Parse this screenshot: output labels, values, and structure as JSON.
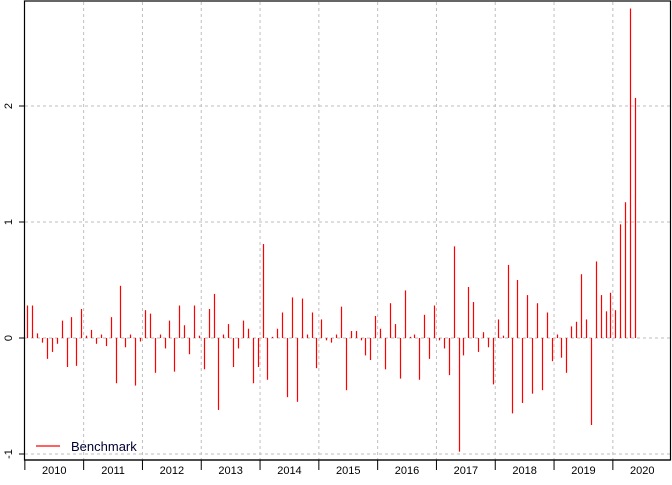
{
  "chart_data": {
    "type": "bar",
    "title": "",
    "xlabel": "",
    "ylabel": "",
    "x_start": "2010-01",
    "x_frequency": "monthly",
    "x_tick_labels": [
      "2010",
      "2011",
      "2012",
      "2013",
      "2014",
      "2015",
      "2016",
      "2017",
      "2018",
      "2019",
      "2020"
    ],
    "y_ticks": [
      -1,
      0,
      1,
      2
    ],
    "y_tick_labels": [
      "-1",
      "0",
      "1",
      "2"
    ],
    "ylim": [
      -1.07,
      2.9
    ],
    "grid": true,
    "legend_position": "bottom-left",
    "series": [
      {
        "name": "Benchmark",
        "color": "#ff0000",
        "values": [
          0.28,
          0.28,
          0.04,
          -0.04,
          -0.18,
          -0.12,
          -0.05,
          0.15,
          -0.25,
          0.18,
          -0.24,
          0.25,
          0.02,
          0.07,
          -0.05,
          0.03,
          -0.07,
          0.18,
          -0.39,
          0.45,
          -0.08,
          0.03,
          -0.41,
          -0.03,
          0.24,
          0.21,
          -0.3,
          0.03,
          -0.09,
          0.15,
          -0.29,
          0.28,
          0.11,
          -0.14,
          0.28,
          0.02,
          -0.27,
          0.25,
          0.38,
          -0.62,
          0.03,
          0.12,
          -0.25,
          -0.09,
          0.15,
          0.08,
          -0.39,
          -0.25,
          0.81,
          -0.36,
          0.01,
          0.08,
          0.22,
          -0.51,
          0.35,
          -0.55,
          0.34,
          0.03,
          0.22,
          -0.26,
          0.16,
          -0.02,
          -0.04,
          0.03,
          0.27,
          -0.45,
          0.06,
          0.06,
          -0.02,
          -0.15,
          -0.19,
          0.19,
          0.08,
          -0.27,
          0.3,
          0.12,
          -0.35,
          0.41,
          0.01,
          0.03,
          -0.36,
          0.2,
          -0.18,
          0.28,
          -0.02,
          -0.09,
          -0.32,
          0.79,
          -0.98,
          -0.15,
          0.44,
          0.31,
          -0.12,
          0.05,
          -0.08,
          -0.4,
          0.16,
          0.02,
          0.63,
          -0.65,
          0.5,
          -0.56,
          0.37,
          -0.48,
          0.3,
          -0.45,
          0.22,
          -0.2,
          0.03,
          -0.17,
          -0.3,
          0.1,
          0.14,
          0.55,
          0.16,
          -0.75,
          0.66,
          0.37,
          0.23,
          0.39,
          0.24,
          0.98,
          1.17,
          2.84,
          2.07
        ]
      }
    ],
    "colors": {
      "series": "#ff0000",
      "grid": "#bebebe",
      "legend_text": "#000033"
    }
  }
}
